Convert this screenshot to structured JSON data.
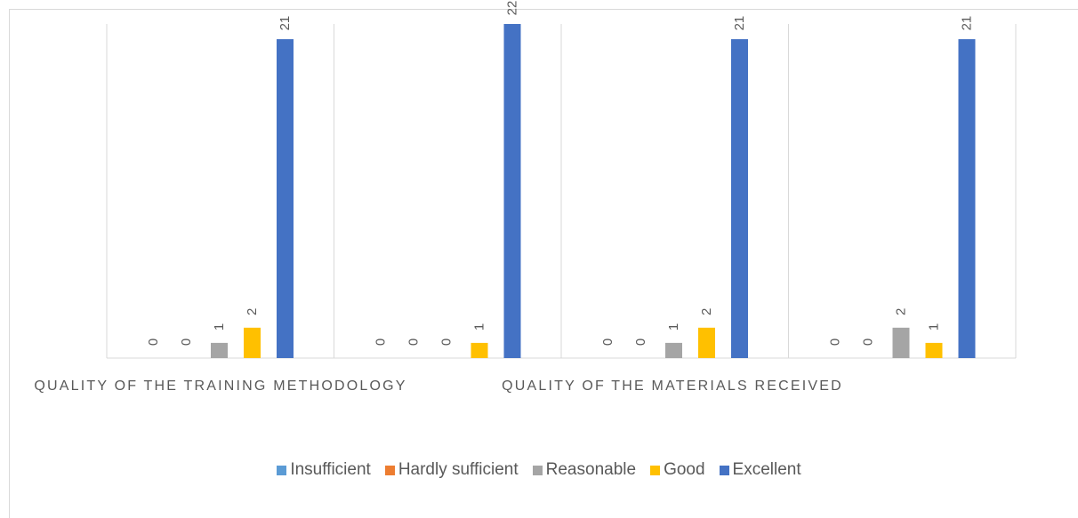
{
  "chart_data": {
    "type": "bar",
    "categories": [
      "QUALITY OF THE TRAINING METHODOLOGY",
      "QUALITY OF THE MATERIALS RECEIVED",
      "",
      ""
    ],
    "series": [
      {
        "name": "Insufficient",
        "color": "#5b9bd5",
        "values": [
          0,
          0,
          0,
          0
        ]
      },
      {
        "name": "Hardly sufficient",
        "color": "#ed7d31",
        "values": [
          0,
          0,
          0,
          0
        ]
      },
      {
        "name": "Reasonable",
        "color": "#a5a5a5",
        "values": [
          1,
          0,
          1,
          2
        ]
      },
      {
        "name": "Good",
        "color": "#ffc000",
        "values": [
          2,
          1,
          2,
          1
        ]
      },
      {
        "name": "Excellent",
        "color": "#4472c4",
        "values": [
          21,
          22,
          21,
          21
        ]
      }
    ],
    "ylim": [
      0,
      22
    ],
    "grid": true,
    "legend_position": "bottom",
    "title": "",
    "xlabel": "",
    "ylabel": ""
  }
}
